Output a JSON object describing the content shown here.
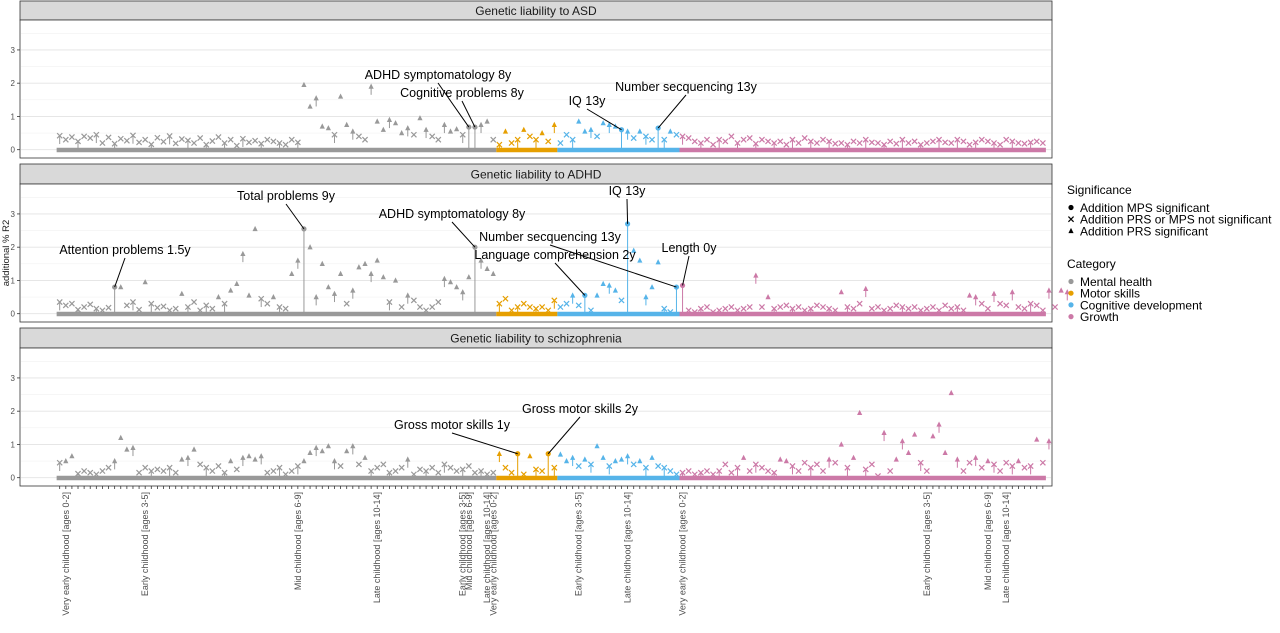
{
  "chart_data": {
    "type": "scatter",
    "ylabel": "additional % R2",
    "y_ticks": [
      "0",
      "1",
      "2",
      "3"
    ],
    "ylim": [
      -0.25,
      3.9
    ],
    "grid": true,
    "legend_position": "right",
    "colors": {
      "Mental health": "#999999",
      "Motor skills": "#E69F00",
      "Cognitive development": "#56B4E9",
      "Growth": "#CC79A7"
    },
    "categories": [
      {
        "name": "Mental health",
        "x_range": [
          1,
          72
        ]
      },
      {
        "name": "Motor skills",
        "x_range": [
          73,
          82
        ]
      },
      {
        "name": "Cognitive development",
        "x_range": [
          83,
          102
        ]
      },
      {
        "name": "Growth",
        "x_range": [
          103,
          162
        ]
      }
    ],
    "x_tick_labels": [
      {
        "x": 2,
        "label": "Very early childhood [ages 0-2]"
      },
      {
        "x": 15,
        "label": "Early childhood [ages 3-5]"
      },
      {
        "x": 40,
        "label": "Mid childhood [ages 6-9]"
      },
      {
        "x": 53,
        "label": "Late childhood [ages 10-14]"
      },
      {
        "x": 67,
        "label": "Early childhood [ages 3-5]"
      },
      {
        "x": 68,
        "label": "Mid childhood [ages 6-9]"
      },
      {
        "x": 71,
        "label": "Late childhood [ages 10-14]"
      },
      {
        "x": 72,
        "label": "Very early childhood [ages 0-2]"
      },
      {
        "x": 86,
        "label": "Early childhood [ages 3-5]"
      },
      {
        "x": 94,
        "label": "Late childhood [ages 10-14]"
      },
      {
        "x": 103,
        "label": "Very early childhood [ages 0-2]"
      },
      {
        "x": 143,
        "label": "Early childhood [ages 3-5]"
      },
      {
        "x": 153,
        "label": "Mid childhood [ages 6-9]"
      },
      {
        "x": 156,
        "label": "Late childhood [ages 10-14]"
      }
    ],
    "legend": {
      "significance_title": "Significance",
      "significance_items": [
        {
          "shape": "circle",
          "label": "Addition MPS significant"
        },
        {
          "shape": "cross",
          "label": "Addition PRS or MPS not significant"
        },
        {
          "shape": "triangle",
          "label": "Addition PRS significant"
        }
      ],
      "category_title": "Category",
      "category_items": [
        "Mental health",
        "Motor skills",
        "Cognitive development",
        "Growth"
      ]
    },
    "panels": [
      {
        "title": "Genetic liability to ASD",
        "base_values": [
          0.42,
          0.3,
          0.38,
          0.25,
          0.4,
          0.35,
          0.45,
          0.2,
          0.37,
          0.18,
          0.33,
          0.27,
          0.43,
          0.22,
          0.3,
          0.16,
          0.36,
          0.24,
          0.41,
          0.19,
          0.32,
          0.28,
          0.2,
          0.35,
          0.15,
          0.26,
          0.38,
          0.2,
          0.3,
          0.12,
          0.33,
          0.22,
          0.27,
          0.18,
          0.3,
          0.25,
          0.2,
          0.15,
          0.3,
          0.22,
          1.95,
          1.3,
          1.55,
          0.7,
          0.65,
          0.45,
          1.6,
          0.75,
          0.55,
          0.4,
          0.3,
          1.9,
          0.85,
          0.6,
          0.9,
          0.8,
          0.5,
          0.65,
          0.45,
          0.95,
          0.6,
          0.4,
          0.3,
          0.75,
          0.55,
          0.62,
          0.45,
          0.58,
          0.4,
          0.75,
          0.85,
          0.3,
          0.15,
          0.55,
          0.2,
          0.3,
          0.6,
          0.4,
          0.3,
          0.5,
          0.25,
          0.75,
          0.2,
          0.45,
          0.3,
          0.85,
          0.55,
          0.6,
          0.4,
          0.8,
          0.75,
          0.7,
          0.5,
          0.55,
          0.35,
          0.55,
          0.4,
          0.3,
          0.65,
          0.3,
          0.55,
          0.45,
          0.4,
          0.35,
          0.25,
          0.2,
          0.3,
          0.15,
          0.3,
          0.25,
          0.4,
          0.2,
          0.3,
          0.35,
          0.18,
          0.3,
          0.25,
          0.2,
          0.25,
          0.15,
          0.3,
          0.2,
          0.35,
          0.25,
          0.2,
          0.3,
          0.25,
          0.18,
          0.2,
          0.15,
          0.25,
          0.2,
          0.3,
          0.22,
          0.2,
          0.15,
          0.25,
          0.18,
          0.3,
          0.2,
          0.25,
          0.15,
          0.2,
          0.25,
          0.3,
          0.22,
          0.2,
          0.3,
          0.25,
          0.15,
          0.22,
          0.3,
          0.25,
          0.2,
          0.15,
          0.3,
          0.25,
          0.2,
          0.18,
          0.22,
          0.25,
          0.2
        ],
        "overrides": [
          {
            "x": 68,
            "value": 0.68,
            "shape": "circle"
          },
          {
            "x": 69,
            "value": 0.68,
            "shape": "circle"
          },
          {
            "x": 93,
            "value": 0.6,
            "shape": "circle"
          },
          {
            "x": 99,
            "value": 0.65,
            "shape": "circle"
          }
        ],
        "annotations": [
          {
            "text": "ADHD symptomatology 8y",
            "x": 68,
            "value": 0.68
          },
          {
            "text": "Cognitive problems 8y",
            "x": 69,
            "value": 0.68
          },
          {
            "text": "IQ 13y",
            "x": 93,
            "value": 0.6
          },
          {
            "text": "Number secquencing 13y",
            "x": 99,
            "value": 0.65
          }
        ]
      },
      {
        "title": "Genetic liability to ADHD",
        "base_values": [
          0.35,
          0.25,
          0.3,
          0.12,
          0.2,
          0.28,
          0.15,
          0.1,
          0.18,
          0.22,
          0.8,
          0.25,
          0.35,
          0.12,
          0.95,
          0.3,
          0.18,
          0.22,
          0.1,
          0.15,
          0.6,
          0.2,
          0.35,
          0.1,
          0.25,
          0.15,
          0.5,
          0.3,
          0.7,
          0.9,
          1.8,
          0.55,
          2.55,
          0.45,
          0.3,
          0.5,
          0.2,
          0.15,
          1.2,
          1.6,
          2.55,
          2.0,
          0.5,
          1.5,
          0.8,
          0.6,
          1.2,
          0.3,
          0.7,
          1.4,
          1.5,
          1.2,
          1.6,
          1.1,
          0.35,
          1.0,
          0.2,
          0.55,
          0.4,
          0.2,
          0.1,
          0.2,
          0.35,
          1.05,
          0.95,
          0.8,
          0.65,
          1.1,
          2.0,
          1.6,
          1.35,
          1.2,
          0.3,
          0.45,
          0.1,
          0.2,
          0.3,
          0.2,
          0.15,
          0.2,
          0.1,
          0.4,
          0.2,
          0.3,
          0.55,
          0.25,
          0.8,
          0.1,
          0.55,
          0.9,
          0.85,
          0.7,
          0.4,
          2.7,
          1.9,
          1.6,
          0.5,
          0.8,
          1.55,
          0.15,
          0.05,
          0.2,
          0.85,
          0.1,
          0.05,
          0.15,
          0.2,
          0.05,
          0.1,
          0.15,
          0.2,
          0.1,
          0.15,
          0.2,
          1.15,
          0.2,
          0.5,
          0.15,
          0.2,
          0.25,
          0.15,
          0.2,
          0.1,
          0.15,
          0.25,
          0.2,
          0.15,
          0.1,
          0.65,
          0.2,
          0.15,
          0.3,
          0.75,
          0.15,
          0.2,
          0.1,
          0.15,
          0.25,
          0.2,
          0.15,
          0.2,
          0.1,
          0.15,
          0.2,
          0.1,
          0.25,
          0.15,
          0.2,
          0.1,
          0.55,
          0.5,
          0.3,
          0.15,
          0.6,
          0.3,
          0.25,
          0.65,
          0.2,
          0.15,
          0.3,
          0.25,
          0.1,
          0.7,
          0.2,
          0.7,
          0.65
        ],
        "overrides": [
          {
            "x": 10,
            "value": 0.8,
            "shape": "circle"
          },
          {
            "x": 41,
            "value": 2.55,
            "shape": "circle"
          },
          {
            "x": 69,
            "value": 2.0,
            "shape": "circle"
          },
          {
            "x": 87,
            "value": 0.55,
            "shape": "circle"
          },
          {
            "x": 94,
            "value": 2.7,
            "shape": "circle"
          },
          {
            "x": 102,
            "value": 0.8,
            "shape": "circle"
          },
          {
            "x": 103,
            "value": 0.85,
            "shape": "circle"
          }
        ],
        "annotations": [
          {
            "text": "Attention problems 1.5y",
            "x": 10,
            "value": 0.8
          },
          {
            "text": "Total problems 9y",
            "x": 41,
            "value": 2.55
          },
          {
            "text": "ADHD symptomatology 8y",
            "x": 69,
            "value": 2.0
          },
          {
            "text": "IQ 13y",
            "x": 94,
            "value": 2.7
          },
          {
            "text": "Number secquencing 13y",
            "x": 102,
            "value": 0.8
          },
          {
            "text": "Language comprehension 2y",
            "x": 87,
            "value": 0.55
          },
          {
            "text": "Length 0y",
            "x": 103,
            "value": 0.85
          }
        ]
      },
      {
        "title": "Genetic liability to schizophrenia",
        "base_values": [
          0.45,
          0.5,
          0.65,
          0.12,
          0.2,
          0.15,
          0.1,
          0.2,
          0.3,
          0.5,
          1.2,
          0.85,
          0.9,
          0.15,
          0.3,
          0.2,
          0.25,
          0.2,
          0.3,
          0.15,
          0.55,
          0.6,
          0.85,
          0.4,
          0.3,
          0.2,
          0.35,
          0.15,
          0.5,
          0.25,
          0.6,
          0.65,
          0.55,
          0.65,
          0.15,
          0.2,
          0.3,
          0.1,
          0.2,
          0.35,
          0.5,
          0.75,
          0.9,
          0.8,
          0.95,
          0.5,
          0.35,
          0.8,
          0.95,
          0.4,
          0.6,
          0.2,
          0.3,
          0.4,
          0.15,
          0.2,
          0.3,
          0.55,
          0.1,
          0.25,
          0.2,
          0.3,
          0.15,
          0.4,
          0.3,
          0.2,
          0.25,
          0.35,
          0.15,
          0.2,
          0.1,
          0.15,
          0.72,
          0.3,
          0.15,
          0.2,
          0.1,
          0.65,
          0.25,
          0.2,
          0.15,
          0.3,
          0.7,
          0.5,
          0.6,
          0.35,
          0.55,
          0.4,
          0.95,
          0.6,
          0.35,
          0.5,
          0.55,
          0.65,
          0.4,
          0.5,
          0.3,
          0.6,
          0.35,
          0.3,
          0.2,
          0.1,
          0.15,
          0.2,
          0.1,
          0.15,
          0.2,
          0.1,
          0.2,
          0.4,
          0.15,
          0.3,
          0.6,
          0.2,
          0.4,
          0.3,
          0.2,
          0.15,
          0.55,
          0.5,
          0.35,
          0.2,
          0.45,
          0.3,
          0.4,
          0.2,
          0.55,
          0.45,
          1.0,
          0.3,
          0.6,
          1.95,
          0.25,
          0.4,
          0.05,
          1.35,
          0.2,
          0.55,
          1.1,
          0.75,
          1.3,
          0.45,
          0.2,
          1.25,
          1.6,
          0.75,
          2.55,
          0.55,
          0.2,
          0.45,
          0.6,
          0.3,
          0.5,
          0.4,
          0.2,
          0.45,
          0.35,
          0.5,
          0.3,
          0.35,
          1.15,
          0.45,
          1.1
        ],
        "overrides": [
          {
            "x": 76,
            "value": 0.72,
            "shape": "circle"
          },
          {
            "x": 81,
            "value": 0.72,
            "shape": "circle"
          }
        ],
        "annotations": [
          {
            "text": "Gross motor skills 1y",
            "x": 76,
            "value": 0.72
          },
          {
            "text": "Gross motor skills 2y",
            "x": 81,
            "value": 0.72
          }
        ]
      }
    ]
  }
}
